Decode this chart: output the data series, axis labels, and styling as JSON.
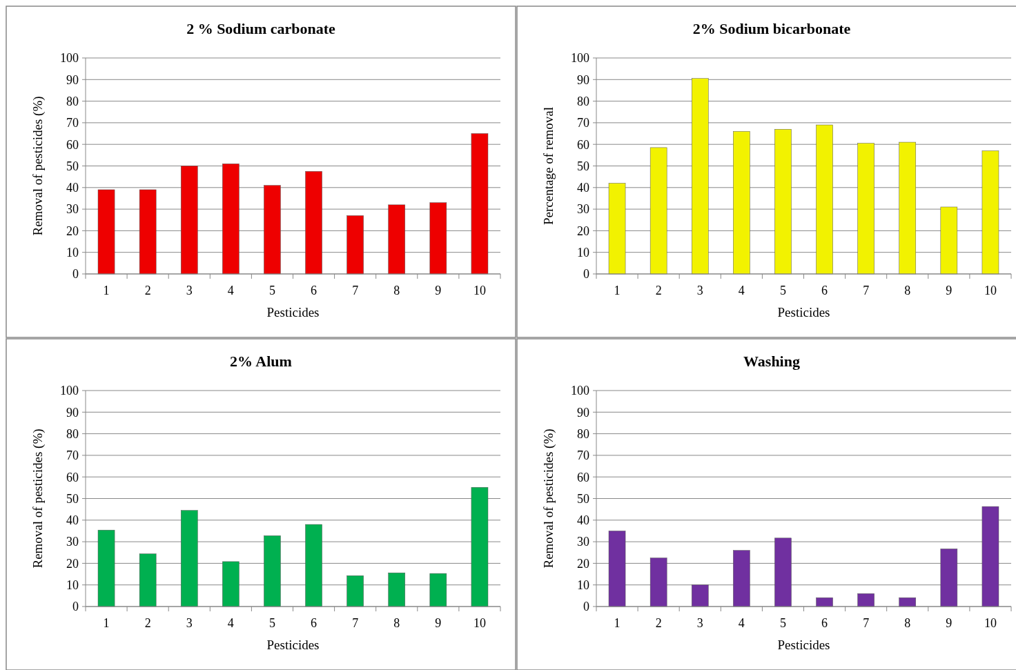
{
  "chart_data": [
    {
      "type": "bar",
      "title": "2 % Sodium carbonate",
      "xlabel": "Pesticides",
      "ylabel": "Removal of pesticides (%)",
      "categories": [
        "1",
        "2",
        "3",
        "4",
        "5",
        "6",
        "7",
        "8",
        "9",
        "10"
      ],
      "values": [
        39,
        39,
        50,
        51,
        41,
        47.5,
        27,
        32,
        33,
        65
      ],
      "color": "#ee0000",
      "ylim": [
        0,
        100
      ],
      "yticks": [
        0,
        10,
        20,
        30,
        40,
        50,
        60,
        70,
        80,
        90,
        100
      ],
      "grid": "y"
    },
    {
      "type": "bar",
      "title": "2% Sodium bicarbonate",
      "xlabel": "Pesticides",
      "ylabel": "Percentage of removal",
      "categories": [
        "1",
        "2",
        "3",
        "4",
        "5",
        "6",
        "7",
        "8",
        "9",
        "10"
      ],
      "values": [
        42,
        58.5,
        90.5,
        66,
        67,
        69,
        60.5,
        61,
        31,
        57
      ],
      "color": "#f2f200",
      "ylim": [
        0,
        100
      ],
      "yticks": [
        0,
        10,
        20,
        30,
        40,
        50,
        60,
        70,
        80,
        90,
        100
      ],
      "grid": "y"
    },
    {
      "type": "bar",
      "title": "2% Alum",
      "xlabel": "Pesticides",
      "ylabel": "Removal of pesticides (%)",
      "categories": [
        "1",
        "2",
        "3",
        "4",
        "5",
        "6",
        "7",
        "8",
        "9",
        "10"
      ],
      "values": [
        35.4,
        24.4,
        44.5,
        20.8,
        32.8,
        38,
        14.3,
        15.6,
        15.3,
        55.2
      ],
      "color": "#00b050",
      "ylim": [
        0,
        100
      ],
      "yticks": [
        0,
        10,
        20,
        30,
        40,
        50,
        60,
        70,
        80,
        90,
        100
      ],
      "grid": "y"
    },
    {
      "type": "bar",
      "title": "Washing",
      "xlabel": "Pesticides",
      "ylabel": "Removal of pesticides (%)",
      "categories": [
        "1",
        "2",
        "3",
        "4",
        "5",
        "6",
        "7",
        "8",
        "9",
        "10"
      ],
      "values": [
        35,
        22.5,
        10,
        26,
        31.7,
        4.1,
        6,
        4.1,
        26.7,
        46.3
      ],
      "color": "#7030a0",
      "ylim": [
        0,
        100
      ],
      "yticks": [
        0,
        10,
        20,
        30,
        40,
        50,
        60,
        70,
        80,
        90,
        100
      ],
      "grid": "y"
    }
  ]
}
